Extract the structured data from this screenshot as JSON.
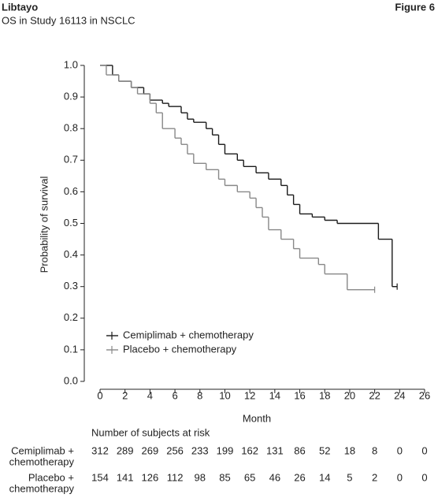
{
  "chart_data": {
    "type": "step",
    "brand": "Libtayo",
    "figure_label": "Figure 6",
    "title": "OS in Study 16113 in NSCLC",
    "xlabel": "Month",
    "ylabel": "Probability of survival",
    "xlim": [
      0,
      26
    ],
    "xticks": [
      0,
      2,
      4,
      6,
      8,
      10,
      12,
      14,
      16,
      18,
      20,
      22,
      24,
      26
    ],
    "ylim": [
      0,
      1
    ],
    "yticks": [
      {
        "value": 0,
        "label": "0.0"
      },
      0.1,
      0.2,
      0.3,
      0.4,
      0.5,
      0.6,
      0.7,
      0.8,
      0.9,
      {
        "value": 1,
        "label": "1.0"
      }
    ],
    "series": [
      {
        "name": "Cemiplimab + chemotherapy",
        "color": "#1a1a1a",
        "x": [
          0,
          1,
          1.5,
          2.5,
          3.5,
          4,
          5,
          5.5,
          6.5,
          7,
          7.5,
          8.5,
          9,
          9.5,
          10,
          11,
          11.5,
          12.5,
          13.5,
          14.5,
          15,
          15.5,
          16,
          17,
          18,
          19,
          22.3,
          23.4,
          23.8
        ],
        "values": [
          1.0,
          0.97,
          0.95,
          0.93,
          0.91,
          0.89,
          0.88,
          0.87,
          0.85,
          0.83,
          0.82,
          0.8,
          0.78,
          0.75,
          0.72,
          0.7,
          0.68,
          0.66,
          0.64,
          0.62,
          0.59,
          0.56,
          0.53,
          0.52,
          0.51,
          0.5,
          0.45,
          0.3,
          0.3
        ]
      },
      {
        "name": "Placebo + chemotherapy",
        "color": "#888888",
        "x": [
          0,
          0.5,
          1.5,
          2.5,
          3,
          4,
          4.5,
          5,
          6,
          6.5,
          7,
          7.5,
          8.5,
          9.5,
          10,
          11,
          12,
          12.5,
          13,
          13.5,
          14.5,
          15.5,
          16,
          17.5,
          18,
          19.8,
          22
        ],
        "values": [
          1.0,
          0.97,
          0.95,
          0.93,
          0.91,
          0.88,
          0.85,
          0.8,
          0.77,
          0.75,
          0.72,
          0.69,
          0.67,
          0.64,
          0.62,
          0.6,
          0.58,
          0.55,
          0.52,
          0.48,
          0.45,
          0.42,
          0.39,
          0.37,
          0.34,
          0.29,
          0.29
        ]
      }
    ],
    "risk_table": {
      "title": "Number of subjects at risk",
      "rows": [
        {
          "label": [
            "Cemiplimab +",
            "chemotherapy"
          ],
          "values": [
            312,
            289,
            269,
            256,
            233,
            199,
            162,
            131,
            86,
            52,
            18,
            8,
            0,
            0
          ]
        },
        {
          "label": [
            "Placebo +",
            "chemotherapy"
          ],
          "values": [
            154,
            141,
            126,
            112,
            98,
            85,
            65,
            46,
            26,
            14,
            5,
            2,
            0,
            0
          ]
        }
      ]
    }
  }
}
